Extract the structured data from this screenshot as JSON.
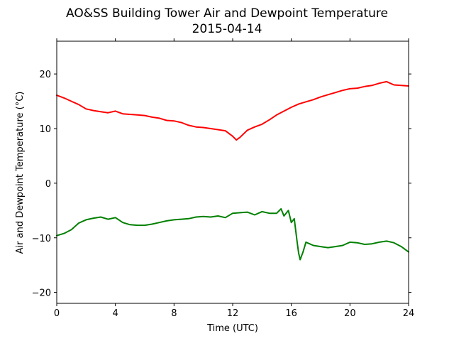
{
  "chart_data": {
    "type": "line",
    "title": "AO&SS Building Tower Air and Dewpoint Temperature",
    "subtitle": "2015-04-14",
    "xlabel": "Time (UTC)",
    "ylabel": "Air and Dewpoint Temperature (°C)",
    "xlim": [
      0,
      24
    ],
    "ylim": [
      -22,
      26
    ],
    "xticks": [
      0,
      4,
      8,
      12,
      16,
      20,
      24
    ],
    "xtick_labels": [
      "0",
      "4",
      "8",
      "12",
      "16",
      "20",
      "24"
    ],
    "yticks": [
      -20,
      -10,
      0,
      10,
      20
    ],
    "ytick_labels": [
      "−20",
      "−10",
      "0",
      "10",
      "20"
    ],
    "grid": false,
    "series": [
      {
        "color": "#ff0000",
        "x": [
          0,
          0.5,
          1,
          1.5,
          2,
          2.5,
          3,
          3.5,
          4,
          4.5,
          5,
          5.5,
          6,
          6.5,
          7,
          7.5,
          8,
          8.5,
          9,
          9.5,
          10,
          10.5,
          11,
          11.5,
          12,
          12.25,
          12.5,
          13,
          13.5,
          14,
          14.5,
          15,
          15.5,
          16,
          16.5,
          17,
          17.5,
          18,
          18.5,
          19,
          19.5,
          20,
          20.5,
          21,
          21.5,
          22,
          22.5,
          23,
          23.5,
          24
        ],
        "y": [
          16.1,
          15.6,
          15,
          14.4,
          13.6,
          13.3,
          13.1,
          12.9,
          13.2,
          12.7,
          12.6,
          12.5,
          12.4,
          12.1,
          11.9,
          11.5,
          11.4,
          11.1,
          10.6,
          10.3,
          10.2,
          10.0,
          9.8,
          9.6,
          8.6,
          7.9,
          8.4,
          9.7,
          10.3,
          10.8,
          11.6,
          12.5,
          13.2,
          13.9,
          14.5,
          14.9,
          15.3,
          15.8,
          16.2,
          16.6,
          17.0,
          17.3,
          17.4,
          17.7,
          17.9,
          18.3,
          18.6,
          18.0,
          17.9,
          17.8
        ]
      },
      {
        "color": "#008000",
        "x": [
          0,
          0.5,
          1,
          1.5,
          2,
          2.5,
          3,
          3.5,
          4,
          4.5,
          5,
          5.5,
          6,
          6.5,
          7,
          7.5,
          8,
          8.5,
          9,
          9.5,
          10,
          10.5,
          11,
          11.5,
          12,
          12.5,
          13,
          13.5,
          14,
          14.5,
          15,
          15.3,
          15.5,
          15.8,
          16,
          16.2,
          16.4,
          16.5,
          16.6,
          16.8,
          17,
          17.5,
          18,
          18.5,
          19,
          19.5,
          20,
          20.5,
          21,
          21.5,
          22,
          22.5,
          23,
          23.5,
          24
        ],
        "y": [
          -9.6,
          -9.2,
          -8.5,
          -7.3,
          -6.7,
          -6.4,
          -6.2,
          -6.6,
          -6.3,
          -7.2,
          -7.6,
          -7.7,
          -7.7,
          -7.5,
          -7.2,
          -6.9,
          -6.7,
          -6.6,
          -6.5,
          -6.2,
          -6.1,
          -6.2,
          -6.0,
          -6.3,
          -5.5,
          -5.4,
          -5.3,
          -5.8,
          -5.2,
          -5.5,
          -5.5,
          -4.7,
          -6.0,
          -5.0,
          -7.2,
          -6.5,
          -10.8,
          -12.8,
          -14.0,
          -12.6,
          -10.8,
          -11.4,
          -11.6,
          -11.8,
          -11.6,
          -11.4,
          -10.8,
          -10.9,
          -11.2,
          -11.1,
          -10.8,
          -10.6,
          -10.9,
          -11.6,
          -12.6
        ]
      }
    ]
  }
}
